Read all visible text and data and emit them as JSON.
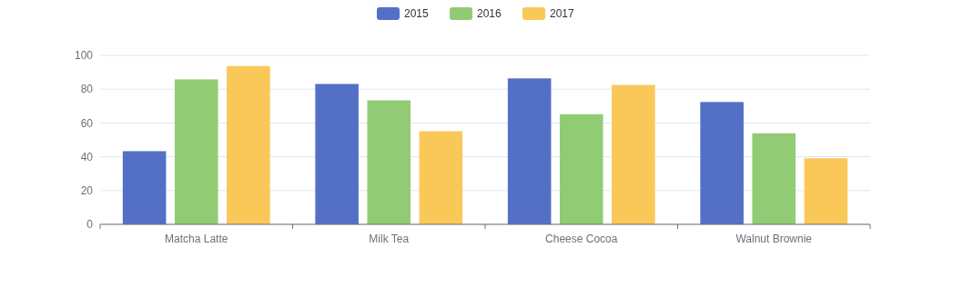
{
  "chart_data": {
    "type": "bar",
    "categories": [
      "Matcha Latte",
      "Milk Tea",
      "Cheese Cocoa",
      "Walnut Brownie"
    ],
    "series": [
      {
        "name": "2015",
        "color": "#5470c6",
        "values": [
          43.3,
          83.1,
          86.4,
          72.4
        ]
      },
      {
        "name": "2016",
        "color": "#91cc75",
        "values": [
          85.8,
          73.4,
          65.2,
          53.9
        ]
      },
      {
        "name": "2017",
        "color": "#fac858",
        "values": [
          93.7,
          55.1,
          82.5,
          39.1
        ]
      }
    ],
    "ylim": [
      0,
      100
    ],
    "yticks": [
      0,
      20,
      40,
      60,
      80,
      100
    ],
    "grid": "y",
    "legend": "top"
  }
}
